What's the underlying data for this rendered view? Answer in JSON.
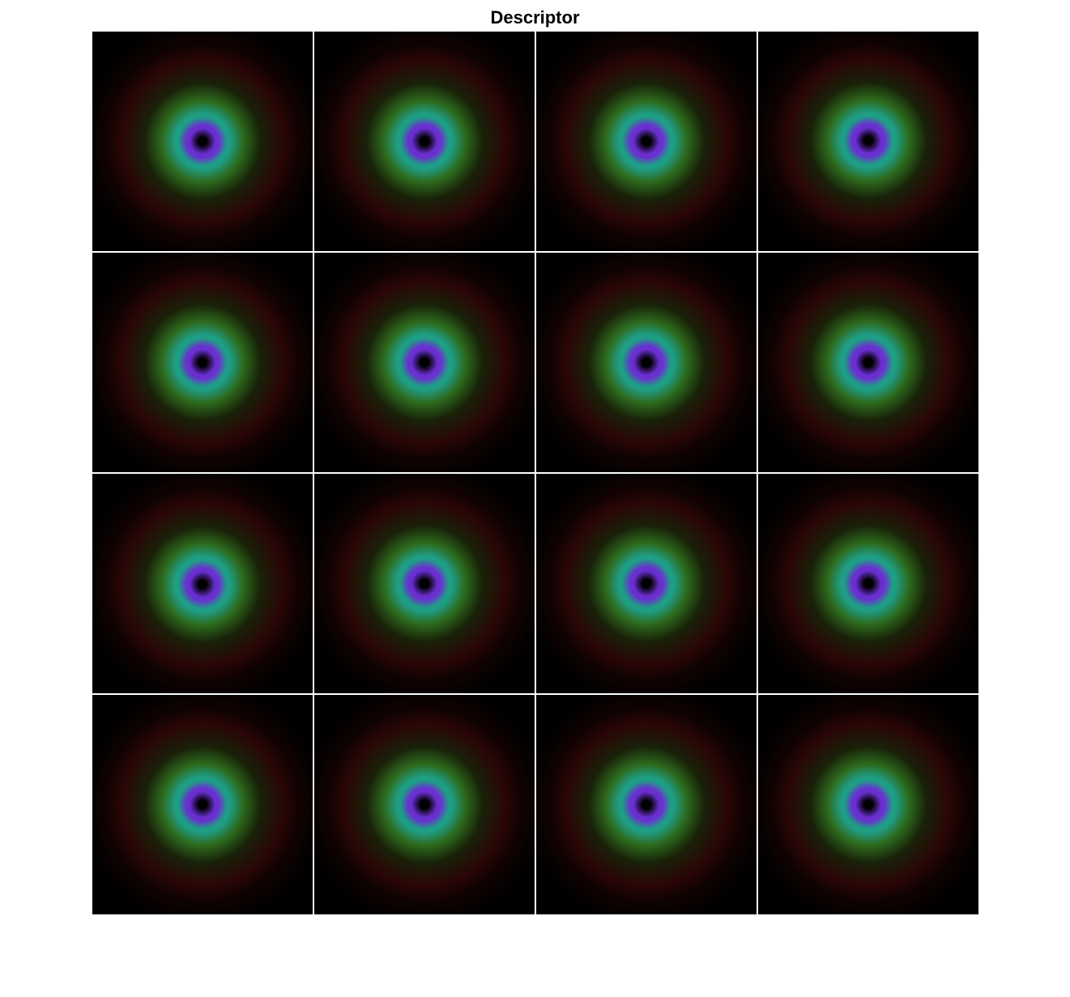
{
  "figure": {
    "title": "Descriptor"
  },
  "montage": {
    "rows": 4,
    "cols": 4,
    "tiles": [
      {
        "name": "descriptor-tile-r1-c1"
      },
      {
        "name": "descriptor-tile-r1-c2"
      },
      {
        "name": "descriptor-tile-r1-c3"
      },
      {
        "name": "descriptor-tile-r1-c4"
      },
      {
        "name": "descriptor-tile-r2-c1"
      },
      {
        "name": "descriptor-tile-r2-c2"
      },
      {
        "name": "descriptor-tile-r2-c3"
      },
      {
        "name": "descriptor-tile-r2-c4"
      },
      {
        "name": "descriptor-tile-r3-c1"
      },
      {
        "name": "descriptor-tile-r3-c2"
      },
      {
        "name": "descriptor-tile-r3-c3"
      },
      {
        "name": "descriptor-tile-r3-c4"
      },
      {
        "name": "descriptor-tile-r4-c1"
      },
      {
        "name": "descriptor-tile-r4-c2"
      },
      {
        "name": "descriptor-tile-r4-c3"
      },
      {
        "name": "descriptor-tile-r4-c4"
      }
    ],
    "colors": {
      "core": "#000000",
      "inner_ring": "#6a2fd0",
      "middle_ring": "#1f9e86",
      "outer_glow": "#2d6b1e",
      "halo": "#2a0606",
      "background": "#000000",
      "grid_lines": "#ffffff"
    }
  }
}
